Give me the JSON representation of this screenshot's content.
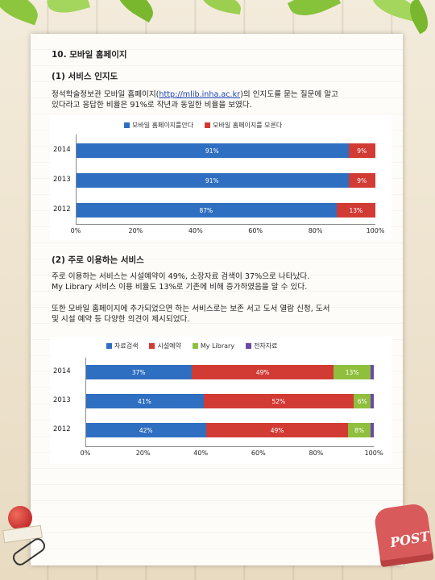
{
  "section_title": "10. 모바일 홈페이지",
  "sub1_title": "(1) 서비스 인지도",
  "p1_before": "정석학술정보관 모바일 홈페이지(",
  "p1_link": "http://mlib.inha.ac.kr",
  "p1_after": ")의 인지도를 묻는 질문에 알고",
  "p1_line2": "있다라고 응답한 비율은 91%로 작년과 동일한 비율을 보였다.",
  "sub2_title": "(2) 주로 이용하는 서비스",
  "p2_line1": "주로 이용하는 서비스는 시설예약이 49%, 소장자료 검색이 37%으로 나타났다.",
  "p2_line2": "My Library 서비스 이용 비율도 13%로 기존에 비해 증가하였음을 알 수 있다.",
  "p3_line1": "또한 모바일 홈페이지에 추가되었으면 하는 서비스로는 보존 서고 도서 열람 신청, 도서",
  "p3_line2": "및 시설 예약 등 다양한 의견이 제시되었다.",
  "chart_data": [
    {
      "type": "bar",
      "orientation": "horizontal",
      "stacked": true,
      "categories": [
        "2014",
        "2013",
        "2012"
      ],
      "series": [
        {
          "name": "모바일 홈페이지를안다",
          "color": "#2f6fc1",
          "values": [
            91,
            91,
            87
          ],
          "labels": [
            "91%",
            "91%",
            "87%"
          ]
        },
        {
          "name": "모바일 홈페이지를 모른다",
          "color": "#d23a34",
          "values": [
            9,
            9,
            13
          ],
          "labels": [
            "9%",
            "9%",
            "13%"
          ]
        }
      ],
      "xticks": [
        "0%",
        "20%",
        "40%",
        "60%",
        "80%",
        "100%"
      ],
      "xlim": [
        0,
        100
      ],
      "legend": "top"
    },
    {
      "type": "bar",
      "orientation": "horizontal",
      "stacked": true,
      "categories": [
        "2014",
        "2013",
        "2012"
      ],
      "series": [
        {
          "name": "자료검색",
          "color": "#2f6fc1",
          "values": [
            37,
            41,
            42
          ],
          "labels": [
            "37%",
            "41%",
            "42%"
          ]
        },
        {
          "name": "시설예약",
          "color": "#d23a34",
          "values": [
            49,
            52,
            49
          ],
          "labels": [
            "49%",
            "52%",
            "49%"
          ]
        },
        {
          "name": "My Library",
          "color": "#8fbf3c",
          "values": [
            13,
            6,
            8
          ],
          "labels": [
            "13%",
            "6%",
            "8%"
          ]
        },
        {
          "name": "전자자료",
          "color": "#6b4aa0",
          "values": [
            1,
            1,
            1
          ],
          "labels": [
            "",
            "",
            ""
          ]
        }
      ],
      "xticks": [
        "0%",
        "20%",
        "40%",
        "60%",
        "80%",
        "100%"
      ],
      "xlim": [
        0,
        100
      ],
      "legend": "top"
    }
  ]
}
